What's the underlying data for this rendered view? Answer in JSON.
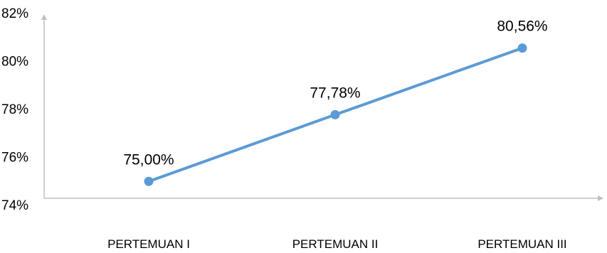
{
  "chart_data": {
    "type": "line",
    "categories": [
      "PERTEMUAN I",
      "PERTEMUAN II",
      "PERTEMUAN III"
    ],
    "series": [
      {
        "values": [
          75.0,
          77.78,
          80.56
        ]
      }
    ],
    "data_labels": [
      "75,00%",
      "77,78%",
      "80,56%"
    ],
    "ylim": [
      74,
      82
    ],
    "yticks": [
      74,
      76,
      78,
      80,
      82
    ],
    "ytick_labels": [
      "74%",
      "76%",
      "78%",
      "80%",
      "82%"
    ],
    "line_color": "#5b9bd5",
    "axis_color": "#bfbfbf",
    "grid": false,
    "legend": "none"
  }
}
